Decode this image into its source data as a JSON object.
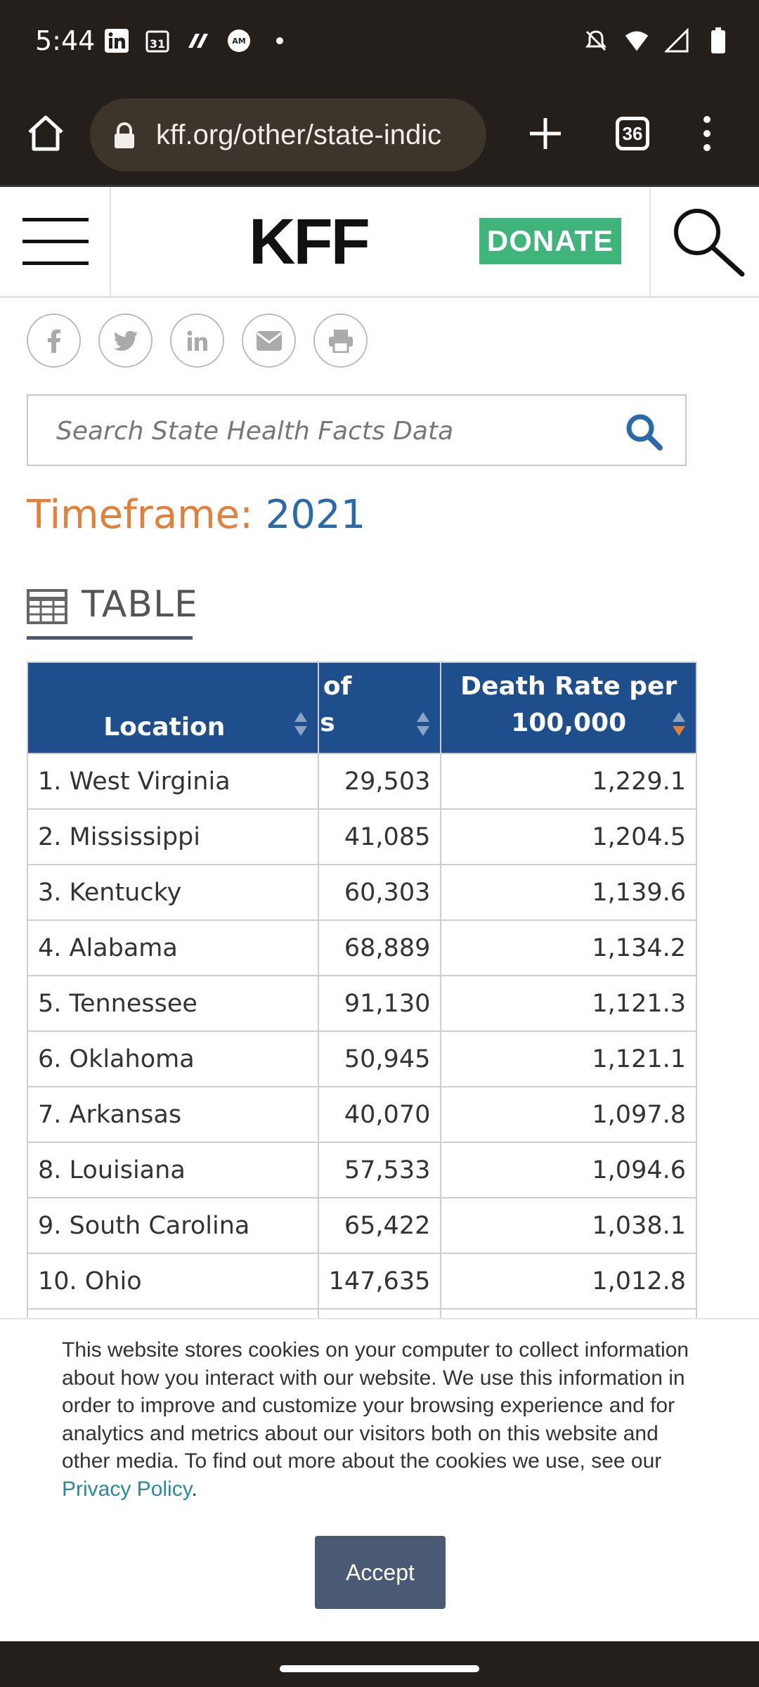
{
  "status_bar": {
    "time": "5:44",
    "left_icons": [
      "linkedin-icon",
      "calendar-31-icon",
      "butterfly-app-icon",
      "amex-icon",
      "dot-icon"
    ],
    "right_icons": [
      "do-not-disturb-icon",
      "wifi-icon",
      "signal-icon",
      "battery-icon"
    ]
  },
  "browser": {
    "url": "kff.org/other/state-indic",
    "tab_count": "36"
  },
  "site_header": {
    "logo": "KFF",
    "donate_label": "DONATE"
  },
  "share_icons": [
    "facebook-icon",
    "twitter-icon",
    "linkedin-icon",
    "email-icon",
    "print-icon"
  ],
  "search": {
    "placeholder": "Search State Health Facts Data"
  },
  "timeframe": {
    "label": "Timeframe:",
    "value": "2021"
  },
  "view_tab": {
    "label": "TABLE"
  },
  "table": {
    "headers": {
      "location": "Location",
      "deaths_line1": "r of",
      "deaths_line2": "ns",
      "rate_line1": "Death Rate per",
      "rate_line2": "100,000"
    },
    "rows": [
      {
        "location": "1. West Virginia",
        "deaths": "29,503",
        "rate": "1,229.1"
      },
      {
        "location": "2. Mississippi",
        "deaths": "41,085",
        "rate": "1,204.5"
      },
      {
        "location": "3. Kentucky",
        "deaths": "60,303",
        "rate": "1,139.6"
      },
      {
        "location": "4. Alabama",
        "deaths": "68,889",
        "rate": "1,134.2"
      },
      {
        "location": "5. Tennessee",
        "deaths": "91,130",
        "rate": "1,121.3"
      },
      {
        "location": "6. Oklahoma",
        "deaths": "50,945",
        "rate": "1,121.1"
      },
      {
        "location": "7. Arkansas",
        "deaths": "40,070",
        "rate": "1,097.8"
      },
      {
        "location": "8. Louisiana",
        "deaths": "57,533",
        "rate": "1,094.6"
      },
      {
        "location": "9. South Carolina",
        "deaths": "65,422",
        "rate": "1,038.1"
      },
      {
        "location": "10. Ohio",
        "deaths": "147,635",
        "rate": "1,012.8"
      }
    ],
    "sort_active_color": "#e47f37",
    "header_color": "#1f4e8c"
  },
  "cookie_banner": {
    "message": "This website stores cookies on your computer to collect information about how you interact with our website. We use this information in order to improve and customize your browsing experience and for analytics and metrics about our visitors both on this website and other media. To find out more about the cookies we use, see our ",
    "link_text": "Privacy Policy",
    "link_suffix": ".",
    "accept_label": "Accept"
  },
  "colors": {
    "browser_chrome": "#241f1b",
    "donate_green": "#3fb57c",
    "timeframe_label": "#e47f37",
    "timeframe_value": "#2a6aab"
  }
}
